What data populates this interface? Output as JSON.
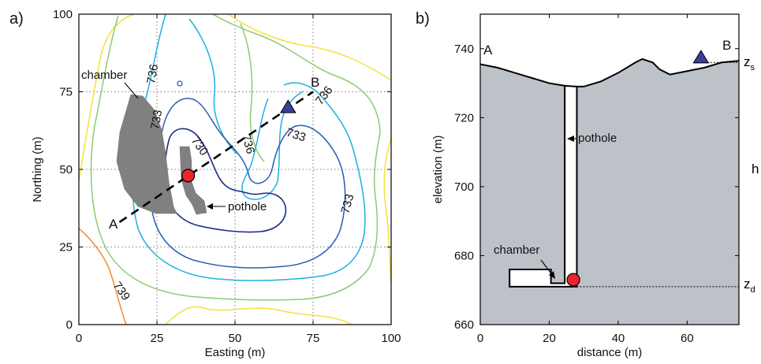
{
  "chart_data": [
    {
      "type": "contour",
      "panel_label": "a)",
      "xlabel": "Easting (m)",
      "ylabel": "Northing (m)",
      "xlim": [
        0,
        100
      ],
      "ylim": [
        0,
        100
      ],
      "xticks": [
        0,
        25,
        50,
        75,
        100
      ],
      "yticks": [
        0,
        25,
        50,
        75,
        100
      ],
      "grid": true,
      "contour_labels": [
        "736",
        "733",
        "730",
        "736",
        "733",
        "736",
        "733",
        "739"
      ],
      "section_line": {
        "start_label": "A",
        "end_label": "B",
        "start": [
          13,
          33
        ],
        "end": [
          75,
          75
        ]
      },
      "features": {
        "chamber_label": "chamber",
        "pothole_label": "pothole"
      },
      "markers": {
        "circle": {
          "x": 35,
          "y": 48,
          "color": "#e8262b"
        },
        "triangle": {
          "x": 67,
          "y": 70,
          "color": "#3a3e9a"
        }
      },
      "contour_colors": [
        "#1b2a8a",
        "#2a5db5",
        "#1fb0e0",
        "#8ccb73",
        "#f2e23a",
        "#f28c28"
      ]
    },
    {
      "type": "area",
      "panel_label": "b)",
      "xlabel": "distance (m)",
      "ylabel": "elevation (m)",
      "xlim": [
        0,
        75
      ],
      "ylim": [
        660,
        750
      ],
      "xticks": [
        0,
        20,
        40,
        60
      ],
      "yticks": [
        660,
        680,
        700,
        720,
        740
      ],
      "surface": {
        "x": [
          0,
          5,
          10,
          15,
          20,
          23,
          26,
          30,
          35,
          40,
          45,
          47,
          50,
          52,
          55,
          60,
          65,
          70,
          75
        ],
        "y": [
          735.5,
          734.5,
          733,
          731.5,
          730,
          729.5,
          729,
          729,
          730.5,
          733,
          736,
          737,
          736,
          734,
          732.5,
          733.5,
          734.5,
          736,
          736.5
        ]
      },
      "pothole": {
        "x_left": 24.5,
        "x_right": 28,
        "bottom": 671
      },
      "chamber": {
        "x_left": 8.5,
        "x_right": 24.5,
        "top": 676,
        "bottom": 671
      },
      "labels": {
        "start": "A",
        "end": "B",
        "chamber": "chamber",
        "pothole": "pothole",
        "z_s": "z",
        "z_s_sub": "s",
        "z_d": "z",
        "z_d_sub": "d",
        "h": "h"
      },
      "z_s": 736,
      "z_d": 671,
      "markers": {
        "circle": {
          "x": 27,
          "y": 673,
          "color": "#e8262b"
        },
        "triangle": {
          "x": 64,
          "y": 736.5,
          "color": "#3a3e9a"
        }
      },
      "fill_color": "#bcc2c8"
    }
  ]
}
